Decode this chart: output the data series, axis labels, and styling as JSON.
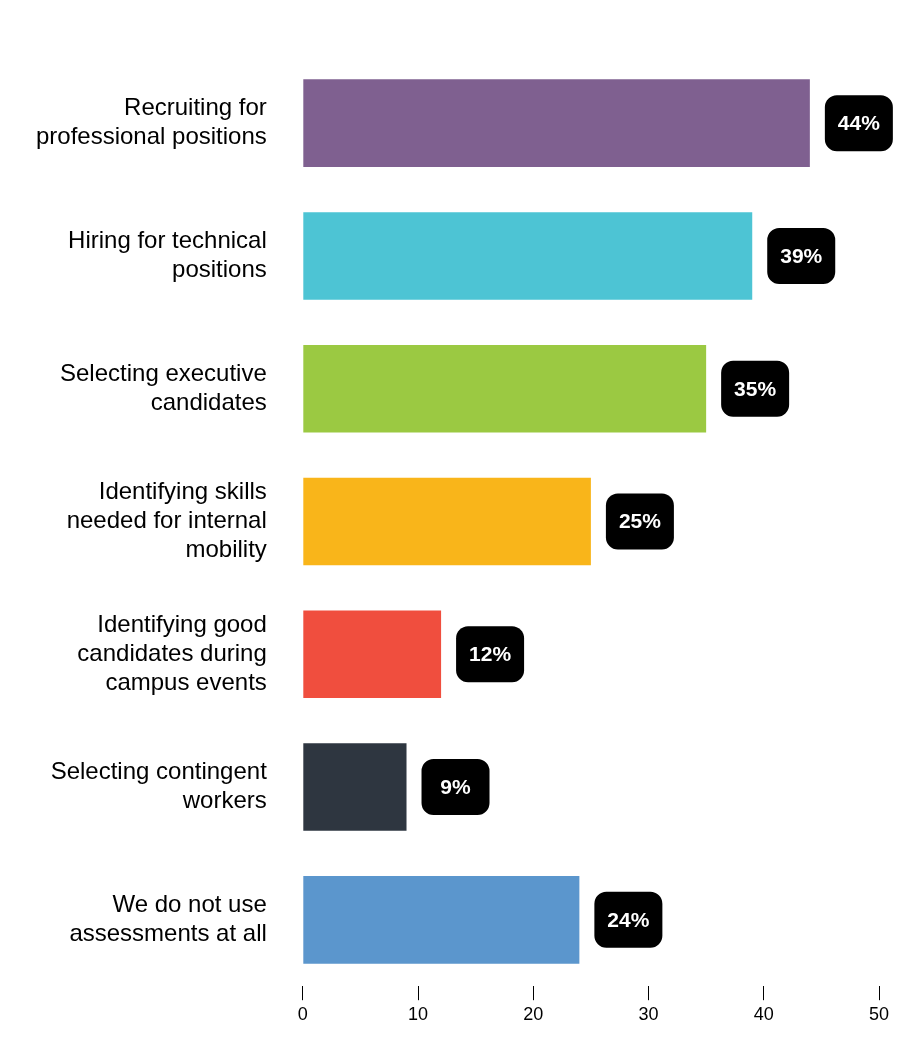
{
  "chart_data": {
    "type": "bar",
    "orientation": "horizontal",
    "categories": [
      "Recruiting for professional positions",
      "Hiring for technical positions",
      "Selecting executive candidates",
      "Identifying skills needed for internal mobility",
      "Identifying good candidates during campus events",
      "Selecting contingent workers",
      "We do not use assessments at all"
    ],
    "values": [
      44,
      39,
      35,
      25,
      12,
      9,
      24
    ],
    "colors": [
      "#7f6090",
      "#4dc4d4",
      "#9bc942",
      "#f9b51a",
      "#f04e3e",
      "#2e3640",
      "#5b96cd"
    ],
    "value_labels": [
      "44%",
      "39%",
      "35%",
      "25%",
      "12%",
      "9%",
      "24%"
    ],
    "xlim": [
      0,
      50
    ],
    "xticks": [
      0,
      10,
      20,
      30,
      40,
      50
    ],
    "grid": false,
    "legend": false
  }
}
